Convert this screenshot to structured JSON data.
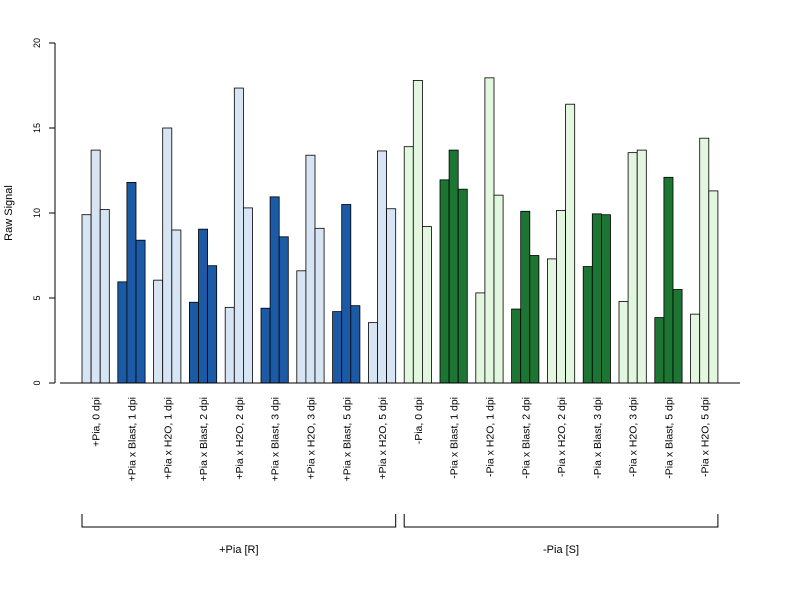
{
  "chart_data": {
    "type": "bar",
    "ylabel": "Raw Signal",
    "ylim": [
      0,
      20
    ],
    "yticks": [
      0,
      5,
      10,
      15,
      20
    ],
    "bars_per_group": 3,
    "colors": {
      "blue_light": "#d6e4f4",
      "blue_dark": "#1c5aa6",
      "green_light": "#e3f6df",
      "green_dark": "#1d7533"
    },
    "categories": [
      {
        "label": "+Pia, 0 dpi",
        "color": "#d6e4f4",
        "values": [
          9.9,
          13.7,
          10.2
        ]
      },
      {
        "label": "+Pia x Blast, 1 dpi",
        "color": "#1c5aa6",
        "values": [
          5.95,
          11.8,
          8.4
        ]
      },
      {
        "label": "+Pia x H2O, 1 dpi",
        "color": "#d6e4f4",
        "values": [
          6.05,
          15.0,
          9.0
        ]
      },
      {
        "label": "+Pia x Blast, 2 dpi",
        "color": "#1c5aa6",
        "values": [
          4.75,
          9.05,
          6.9
        ]
      },
      {
        "label": "+Pia x H2O, 2 dpi",
        "color": "#d6e4f4",
        "values": [
          4.45,
          17.35,
          10.3
        ]
      },
      {
        "label": "+Pia x Blast, 3 dpi",
        "color": "#1c5aa6",
        "values": [
          4.4,
          10.95,
          8.6
        ]
      },
      {
        "label": "+Pia x H2O, 3 dpi",
        "color": "#d6e4f4",
        "values": [
          6.6,
          13.4,
          9.1
        ]
      },
      {
        "label": "+Pia x Blast, 5 dpi",
        "color": "#1c5aa6",
        "values": [
          4.2,
          10.5,
          4.55
        ]
      },
      {
        "label": "+Pia x H2O, 5 dpi",
        "color": "#d6e4f4",
        "values": [
          3.55,
          13.65,
          10.25
        ]
      },
      {
        "label": "-Pia, 0 dpi",
        "color": "#e3f6df",
        "values": [
          13.9,
          17.8,
          9.2
        ]
      },
      {
        "label": "-Pia x Blast, 1 dpi",
        "color": "#1d7533",
        "values": [
          11.95,
          13.7,
          11.4
        ]
      },
      {
        "label": "-Pia x H2O, 1 dpi",
        "color": "#e3f6df",
        "values": [
          5.3,
          17.95,
          11.05
        ]
      },
      {
        "label": "-Pia x Blast, 2 dpi",
        "color": "#1d7533",
        "values": [
          4.35,
          10.1,
          7.5
        ]
      },
      {
        "label": "-Pia x H2O, 2 dpi",
        "color": "#e3f6df",
        "values": [
          7.3,
          10.15,
          16.4
        ]
      },
      {
        "label": "-Pia x Blast, 3 dpi",
        "color": "#1d7533",
        "values": [
          6.85,
          9.95,
          9.9
        ]
      },
      {
        "label": "-Pia x H2O, 3 dpi",
        "color": "#e3f6df",
        "values": [
          4.8,
          13.55,
          13.7
        ]
      },
      {
        "label": "-Pia x Blast, 5 dpi",
        "color": "#1d7533",
        "values": [
          3.85,
          12.1,
          5.5
        ]
      },
      {
        "label": "-Pia x H2O, 5 dpi",
        "color": "#e3f6df",
        "values": [
          4.05,
          14.4,
          11.3
        ]
      }
    ],
    "groups": [
      {
        "label": "+Pia [R]",
        "first_category": 0,
        "last_category": 8
      },
      {
        "label": "-Pia [S]",
        "first_category": 9,
        "last_category": 17
      }
    ]
  }
}
